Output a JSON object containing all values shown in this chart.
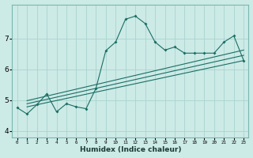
{
  "xlabel": "Humidex (Indice chaleur)",
  "bg_color": "#cceae6",
  "grid_color": "#aad4d0",
  "line_color": "#1a6e64",
  "xlim": [
    -0.5,
    23.5
  ],
  "ylim": [
    3.8,
    8.1
  ],
  "yticks": [
    4,
    5,
    6,
    7
  ],
  "xtick_labels": [
    "0",
    "1",
    "2",
    "3",
    "4",
    "5",
    "6",
    "7",
    "8",
    "9",
    "10",
    "11",
    "12",
    "13",
    "14",
    "15",
    "16",
    "17",
    "18",
    "19",
    "20",
    "21",
    "22",
    "23"
  ],
  "series1_x": [
    0,
    1,
    2,
    3,
    4,
    5,
    6,
    7,
    8,
    9,
    10,
    11,
    12,
    13,
    14,
    15,
    16,
    17,
    18,
    19,
    20,
    21,
    22,
    23
  ],
  "series1_y": [
    4.75,
    4.55,
    4.85,
    5.2,
    4.62,
    4.88,
    4.78,
    4.72,
    5.38,
    6.6,
    6.88,
    7.62,
    7.72,
    7.48,
    6.88,
    6.62,
    6.72,
    6.52,
    6.52,
    6.52,
    6.52,
    6.88,
    7.08,
    6.28
  ],
  "line1_x": [
    1,
    23
  ],
  "line1_y": [
    4.78,
    6.28
  ],
  "line2_x": [
    1,
    23
  ],
  "line2_y": [
    4.88,
    6.45
  ],
  "line3_x": [
    1,
    23
  ],
  "line3_y": [
    4.98,
    6.62
  ]
}
